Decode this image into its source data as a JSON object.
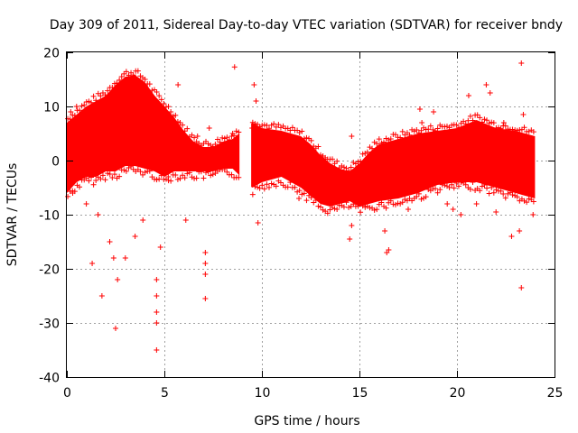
{
  "chart_data": {
    "type": "scatter",
    "title": "Day 309 of 2011, Sidereal Day-to-day VTEC variation (SDTVAR) for receiver bndy",
    "xlabel": "GPS time / hours",
    "ylabel": "SDTVAR / TECUs",
    "xlim": [
      0,
      25
    ],
    "ylim": [
      -40,
      20
    ],
    "xticks": [
      0,
      5,
      10,
      15,
      20,
      25
    ],
    "yticks": [
      -40,
      -30,
      -20,
      -10,
      0,
      10,
      20
    ],
    "xtick_labels": [
      "0",
      "5",
      "10",
      "15",
      "20",
      "25"
    ],
    "ytick_labels": [
      "-40",
      "-30",
      "-20",
      "-10",
      "0",
      "10",
      "20"
    ],
    "grid": true,
    "marker": "plus",
    "color": "#ff0000",
    "series": [
      {
        "name": "SDTVAR",
        "band_upper": [
          [
            0,
            7
          ],
          [
            0.5,
            8.5
          ],
          [
            1,
            10
          ],
          [
            1.5,
            11
          ],
          [
            2,
            12
          ],
          [
            2.5,
            14
          ],
          [
            3,
            15.5
          ],
          [
            3.5,
            15.8
          ],
          [
            4,
            14.5
          ],
          [
            4.5,
            12
          ],
          [
            5,
            10
          ],
          [
            5.5,
            8
          ],
          [
            6,
            5.5
          ],
          [
            6.5,
            3.5
          ],
          [
            7,
            2.5
          ],
          [
            7.5,
            2.5
          ],
          [
            8,
            3.5
          ],
          [
            8.5,
            4
          ],
          [
            9.5,
            7
          ],
          [
            10,
            6
          ],
          [
            11,
            5.5
          ],
          [
            12,
            4.5
          ],
          [
            12.5,
            3
          ],
          [
            13,
            1
          ],
          [
            13.5,
            -0.5
          ],
          [
            14,
            -1.5
          ],
          [
            14.5,
            -2
          ],
          [
            15,
            -0.5
          ],
          [
            15.5,
            1.5
          ],
          [
            16,
            3
          ],
          [
            17,
            4
          ],
          [
            18,
            5
          ],
          [
            19,
            5.5
          ],
          [
            20,
            6
          ],
          [
            21,
            7.5
          ],
          [
            22,
            6
          ],
          [
            23,
            5.5
          ],
          [
            24,
            4.5
          ]
        ],
        "band_lower": [
          [
            0,
            -6
          ],
          [
            0.5,
            -4
          ],
          [
            1,
            -3
          ],
          [
            1.5,
            -3
          ],
          [
            2,
            -2
          ],
          [
            2.5,
            -2
          ],
          [
            3,
            -1
          ],
          [
            3.5,
            -1
          ],
          [
            4,
            -1.5
          ],
          [
            4.5,
            -2
          ],
          [
            5,
            -3
          ],
          [
            5.5,
            -2
          ],
          [
            6,
            -2
          ],
          [
            6.5,
            -2
          ],
          [
            7,
            -2
          ],
          [
            7.5,
            -2
          ],
          [
            8,
            -1.5
          ],
          [
            8.5,
            -1.5
          ],
          [
            9.5,
            -5
          ],
          [
            10,
            -4
          ],
          [
            11,
            -3
          ],
          [
            12,
            -5
          ],
          [
            12.5,
            -6.5
          ],
          [
            13,
            -8
          ],
          [
            13.5,
            -8.5
          ],
          [
            14,
            -8
          ],
          [
            14.5,
            -7.5
          ],
          [
            15,
            -8.5
          ],
          [
            15.5,
            -8
          ],
          [
            16,
            -7.5
          ],
          [
            17,
            -7
          ],
          [
            18,
            -6
          ],
          [
            19,
            -4.5
          ],
          [
            20,
            -4
          ],
          [
            21,
            -4
          ],
          [
            22,
            -5
          ],
          [
            23,
            -6
          ],
          [
            24,
            -7
          ]
        ],
        "points": [
          [
            1.3,
            -19
          ],
          [
            1.8,
            -25
          ],
          [
            2.5,
            -31
          ],
          [
            4.6,
            -35
          ],
          [
            4.6,
            -30
          ],
          [
            4.6,
            -28
          ],
          [
            4.6,
            -25
          ],
          [
            4.6,
            -22
          ],
          [
            4.8,
            -16
          ],
          [
            7.1,
            -25.5
          ],
          [
            7.1,
            -21
          ],
          [
            7.1,
            -19
          ],
          [
            7.1,
            -17
          ],
          [
            2.6,
            -22
          ],
          [
            2.4,
            -18
          ],
          [
            2.2,
            -15
          ],
          [
            3.0,
            -18
          ],
          [
            3.5,
            -14
          ],
          [
            3.9,
            -11
          ],
          [
            5.7,
            14
          ],
          [
            8.6,
            17.3
          ],
          [
            8.4,
            2
          ],
          [
            9.6,
            14
          ],
          [
            9.7,
            11
          ],
          [
            9.8,
            -11.5
          ],
          [
            5.2,
            -3
          ],
          [
            6.1,
            -11
          ],
          [
            1.6,
            -10
          ],
          [
            1.0,
            -8
          ],
          [
            14.6,
            4.5
          ],
          [
            14.5,
            -14.5
          ],
          [
            14.6,
            -12
          ],
          [
            16.4,
            -17
          ],
          [
            16.5,
            -16.5
          ],
          [
            18.1,
            9.5
          ],
          [
            18.2,
            7
          ],
          [
            18.8,
            9
          ],
          [
            19.5,
            -8
          ],
          [
            19.8,
            -9
          ],
          [
            20.6,
            12
          ],
          [
            21.5,
            14
          ],
          [
            21.7,
            12.5
          ],
          [
            22.8,
            -14
          ],
          [
            23.2,
            -13
          ],
          [
            23.3,
            -23.5
          ],
          [
            23.3,
            18
          ],
          [
            23.4,
            8.5
          ],
          [
            23.9,
            -10
          ],
          [
            21.0,
            -8
          ],
          [
            17.5,
            -9
          ],
          [
            16.3,
            -13
          ],
          [
            15.3,
            -8
          ],
          [
            11.9,
            -7
          ],
          [
            9.5,
            6
          ],
          [
            0.3,
            -6
          ],
          [
            0.2,
            9
          ],
          [
            0.5,
            10
          ],
          [
            22.4,
            7
          ],
          [
            22.0,
            -9.5
          ],
          [
            20.2,
            -10
          ],
          [
            6.7,
            4.5
          ],
          [
            7.3,
            6
          ],
          [
            8.5,
            5
          ],
          [
            13.8,
            -3
          ],
          [
            12.2,
            1
          ]
        ]
      }
    ]
  }
}
